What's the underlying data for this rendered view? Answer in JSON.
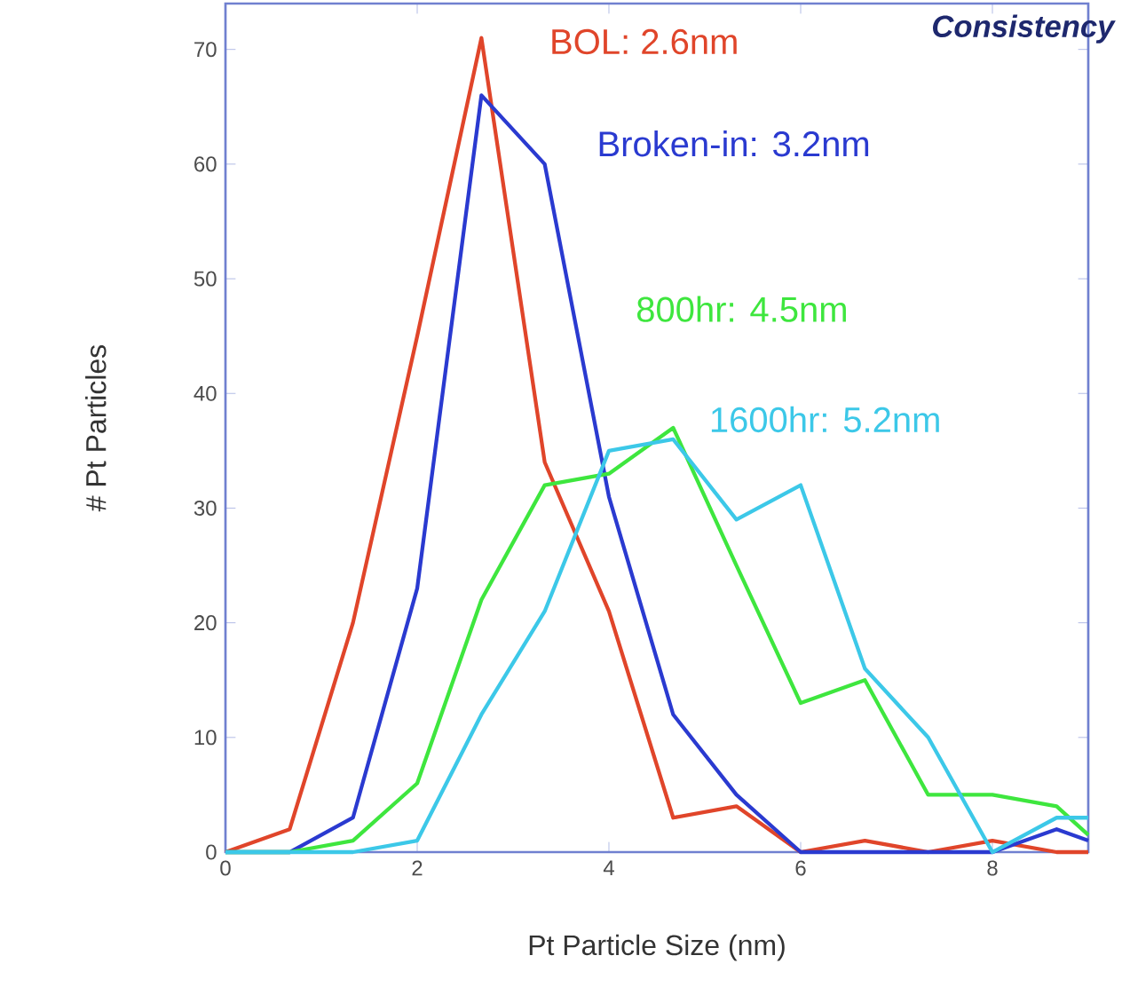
{
  "chart_data": {
    "type": "line",
    "xlabel": "Pt Particle Size (nm)",
    "ylabel": "# Pt Particles",
    "x": [
      0,
      0.67,
      1.33,
      2,
      2.67,
      3.33,
      4,
      4.67,
      5.33,
      6,
      6.67,
      7.33,
      8,
      8.67,
      9
    ],
    "xlim": [
      0,
      9
    ],
    "ylim": [
      0,
      74
    ],
    "xticks": [
      0,
      2,
      4,
      6,
      8
    ],
    "yticks": [
      0,
      10,
      20,
      30,
      40,
      50,
      60,
      70
    ],
    "annotations": [
      "Consistency"
    ],
    "series": [
      {
        "name": "BOL: 2.6nm",
        "color": "#e0452a",
        "values": [
          0,
          2,
          20,
          45,
          71,
          34,
          21,
          3,
          4,
          0,
          1,
          0,
          1,
          0,
          0
        ]
      },
      {
        "name": "Broken-in: 3.2nm",
        "color": "#2a3ad0",
        "values": [
          0,
          0,
          3,
          23,
          66,
          60,
          31,
          12,
          5,
          0,
          0,
          0,
          0,
          2,
          1
        ]
      },
      {
        "name": "800hr: 4.5nm",
        "color": "#3ee63e",
        "values": [
          0,
          0,
          1,
          6,
          22,
          32,
          33,
          37,
          25,
          13,
          15,
          5,
          5,
          4,
          1.5
        ]
      },
      {
        "name": "1600hr: 5.2nm",
        "color": "#3cc8e8",
        "values": [
          0,
          0,
          0,
          1,
          12,
          21,
          35,
          36,
          29,
          32,
          16,
          10,
          0,
          3,
          3
        ]
      }
    ]
  }
}
